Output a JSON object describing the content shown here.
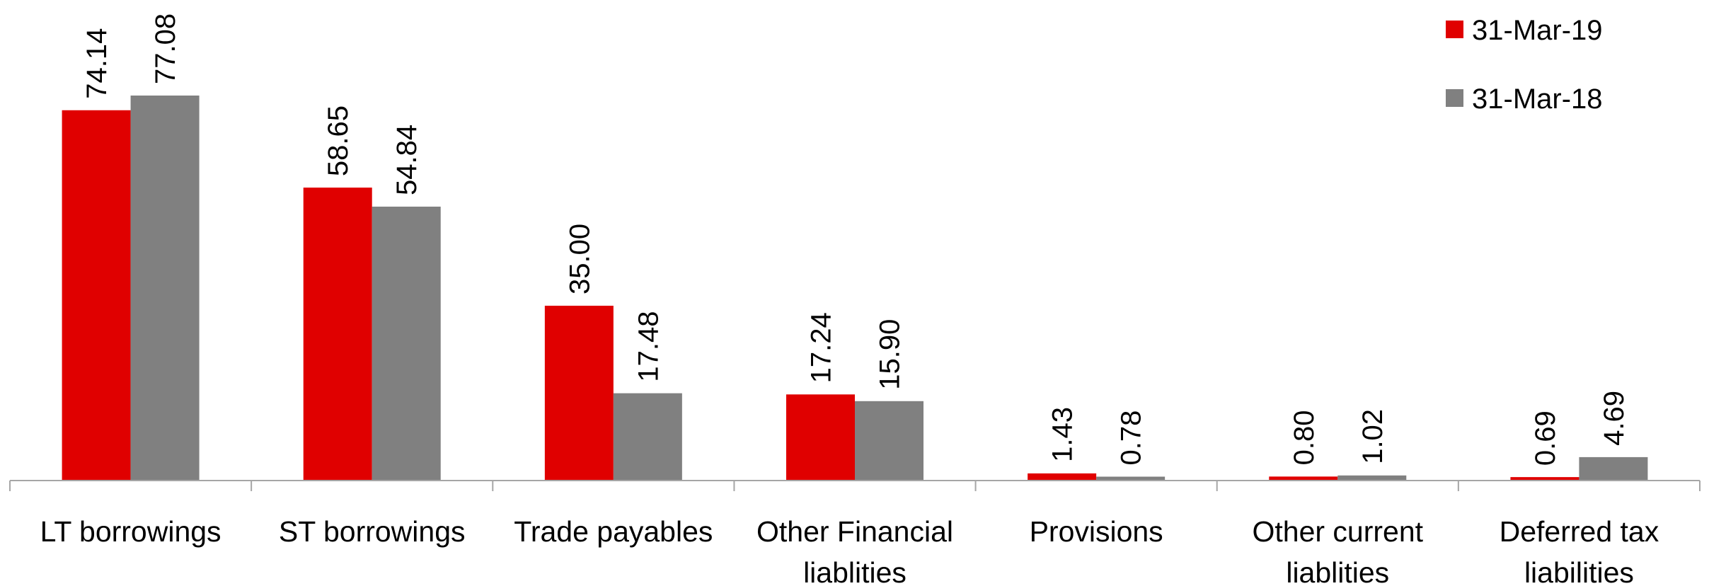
{
  "chart_data": {
    "type": "bar",
    "categories": [
      "LT borrowings",
      "ST borrowings",
      "Trade payables",
      "Other Financial liablities",
      "Provisions",
      "Other current liablities",
      "Deferred tax liabilities"
    ],
    "series": [
      {
        "name": "31-Mar-19",
        "color": "#e00000",
        "values": [
          74.14,
          58.65,
          35.0,
          17.24,
          1.43,
          0.8,
          0.69
        ],
        "value_labels": [
          "74.14",
          "58.65",
          "35.00",
          "17.24",
          "1.43",
          "0.80",
          "0.69"
        ]
      },
      {
        "name": "31-Mar-18",
        "color": "#808080",
        "values": [
          77.08,
          54.84,
          17.48,
          15.9,
          0.78,
          1.02,
          4.69
        ],
        "value_labels": [
          "77.08",
          "54.84",
          "17.48",
          "15.90",
          "0.78",
          "1.02",
          "4.69"
        ]
      }
    ],
    "legend": "top-right"
  }
}
